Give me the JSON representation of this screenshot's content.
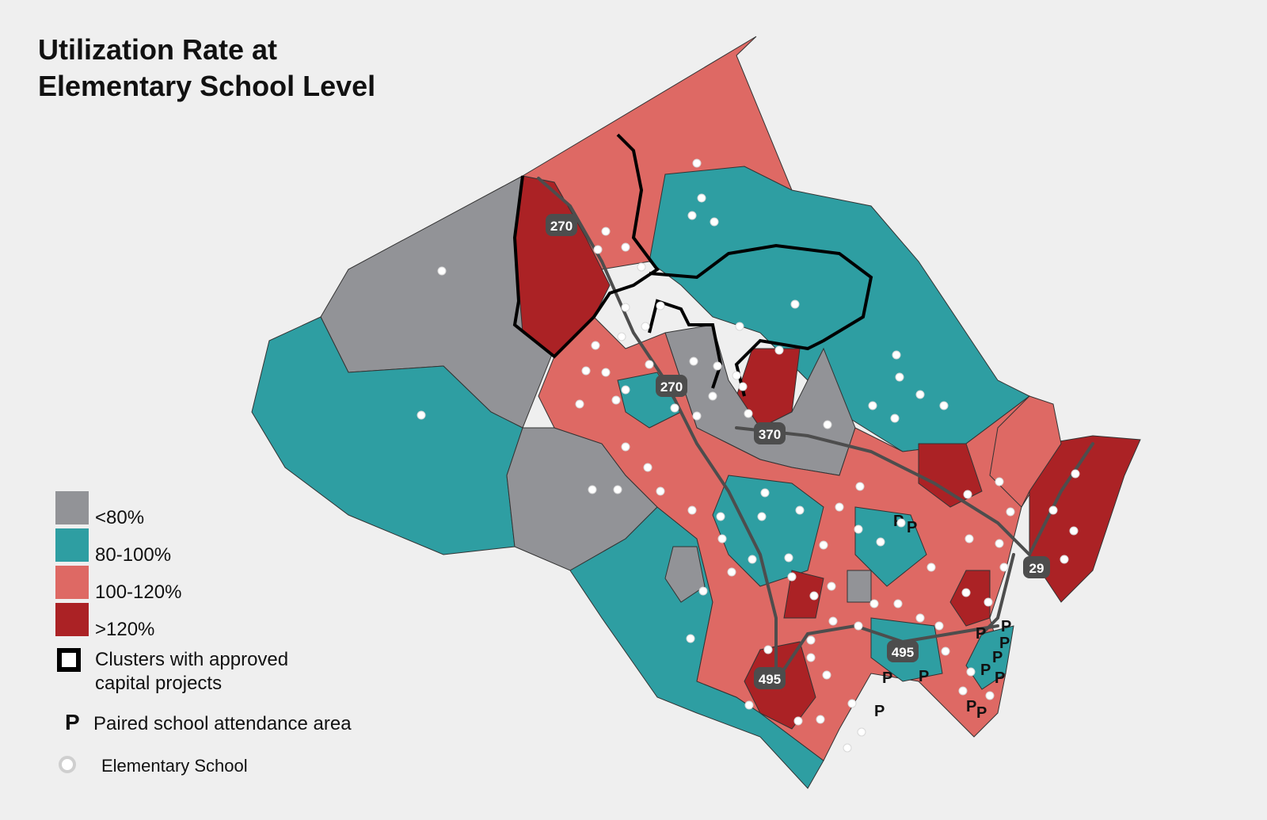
{
  "title": {
    "line1": "Utilization Rate at",
    "line2": "Elementary School Level"
  },
  "colors": {
    "background": "#efefef",
    "under_80": "#929397",
    "r80_100": "#2e9ea2",
    "r100_120": "#de6964",
    "over_120": "#ab2225",
    "cluster_outline": "#000000",
    "highway": "#4d4d4d",
    "school_dot": "#ffffff"
  },
  "legend": [
    {
      "label": "<80%",
      "color": "#929397"
    },
    {
      "label": "80-100%",
      "color": "#2e9ea2"
    },
    {
      "label": "100-120%",
      "color": "#de6964"
    },
    {
      "label": ">120%",
      "color": "#ab2225"
    }
  ],
  "legend_cluster": {
    "line1": "Clusters with approved",
    "line2": "capital projects",
    "icon": "black-square-outline"
  },
  "legend_paired": {
    "glyph": "P",
    "label": "Paired school attendance area"
  },
  "legend_school": {
    "label": "Elementary  School",
    "icon": "white-circle"
  },
  "highways": [
    "270",
    "270",
    "370",
    "29",
    "495",
    "495"
  ],
  "paired_marker": "P"
}
